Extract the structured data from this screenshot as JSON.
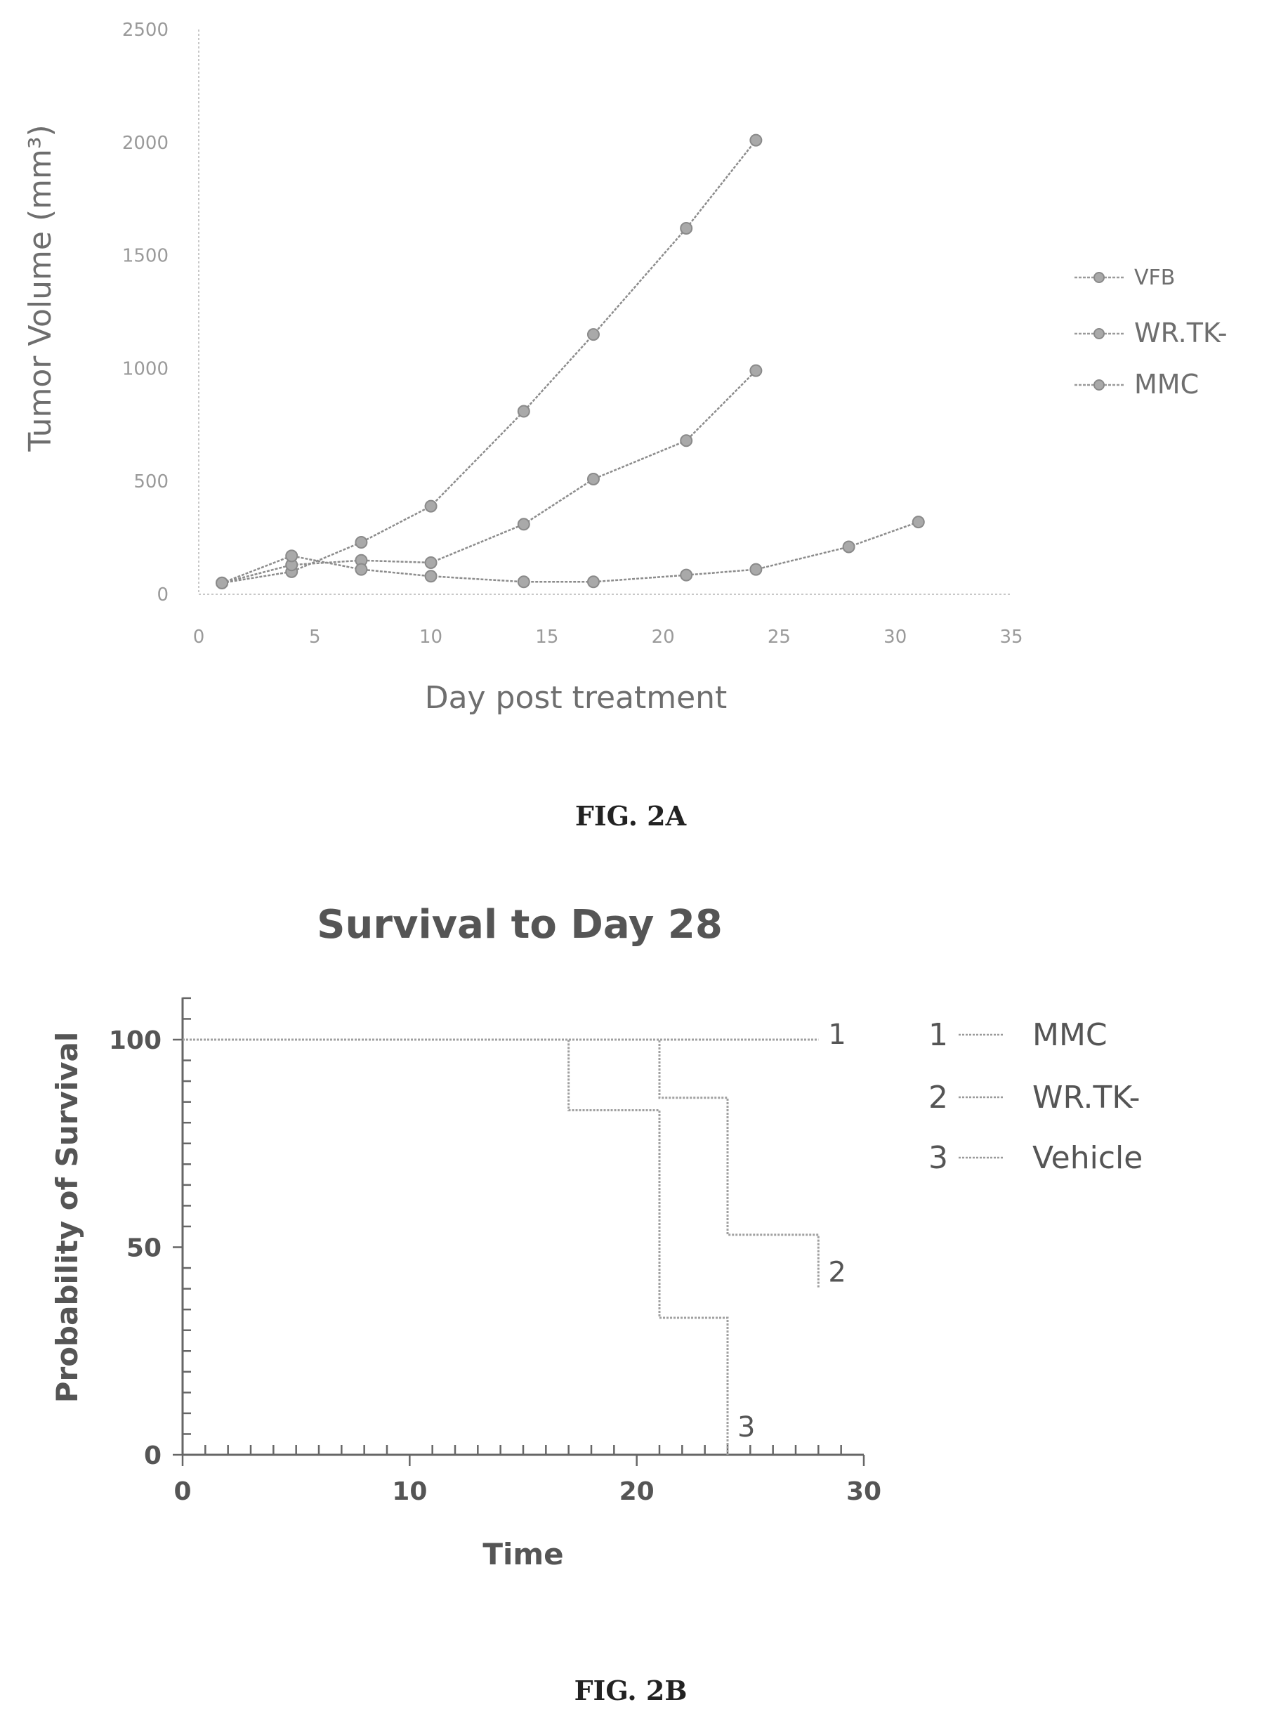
{
  "figures": {
    "fig_a_caption": "FIG. 2A",
    "fig_b_caption": "FIG. 2B"
  },
  "chart_data": [
    {
      "type": "line",
      "title": "",
      "xlabel": "Day post treatment",
      "ylabel": "Tumor Volume (mm³)",
      "xlim": [
        0,
        35
      ],
      "ylim": [
        0,
        2500
      ],
      "xticks": [
        "0",
        "5",
        "10",
        "15",
        "20",
        "25",
        "30",
        "35"
      ],
      "yticks": [
        "0",
        "500",
        "1000",
        "1500",
        "2000",
        "2500"
      ],
      "grid": false,
      "legend": "right",
      "series": [
        {
          "name": "VFB",
          "x": [
            1,
            4,
            7,
            10,
            14,
            17,
            21,
            24
          ],
          "y": [
            50,
            100,
            230,
            390,
            810,
            1150,
            1620,
            2010
          ]
        },
        {
          "name": "WR.TK-",
          "x": [
            1,
            4,
            7,
            10,
            14,
            17,
            21,
            24
          ],
          "y": [
            50,
            130,
            150,
            140,
            310,
            510,
            680,
            990
          ]
        },
        {
          "name": "MMC",
          "x": [
            1,
            4,
            7,
            10,
            14,
            17,
            21,
            24,
            28,
            31
          ],
          "y": [
            50,
            170,
            110,
            80,
            55,
            55,
            85,
            110,
            210,
            320
          ]
        }
      ]
    },
    {
      "type": "line",
      "title": "Survival to Day 28",
      "xlabel": "Time",
      "ylabel": "Probability of Survival",
      "xlim": [
        0,
        30
      ],
      "ylim": [
        0,
        100
      ],
      "xticks": [
        "0",
        "10",
        "20",
        "30"
      ],
      "yticks": [
        "0",
        "50",
        "100"
      ],
      "grid": false,
      "legend": "right",
      "series": [
        {
          "id": "1",
          "name": "MMC",
          "x": [
            0,
            28
          ],
          "y": [
            100,
            100
          ]
        },
        {
          "id": "2",
          "name": "WR.TK-",
          "x": [
            0,
            21,
            24,
            28
          ],
          "y": [
            100,
            86,
            53,
            40
          ]
        },
        {
          "id": "3",
          "name": "Vehicle",
          "x": [
            0,
            17,
            21,
            24
          ],
          "y": [
            100,
            83,
            33,
            0
          ]
        }
      ]
    }
  ]
}
